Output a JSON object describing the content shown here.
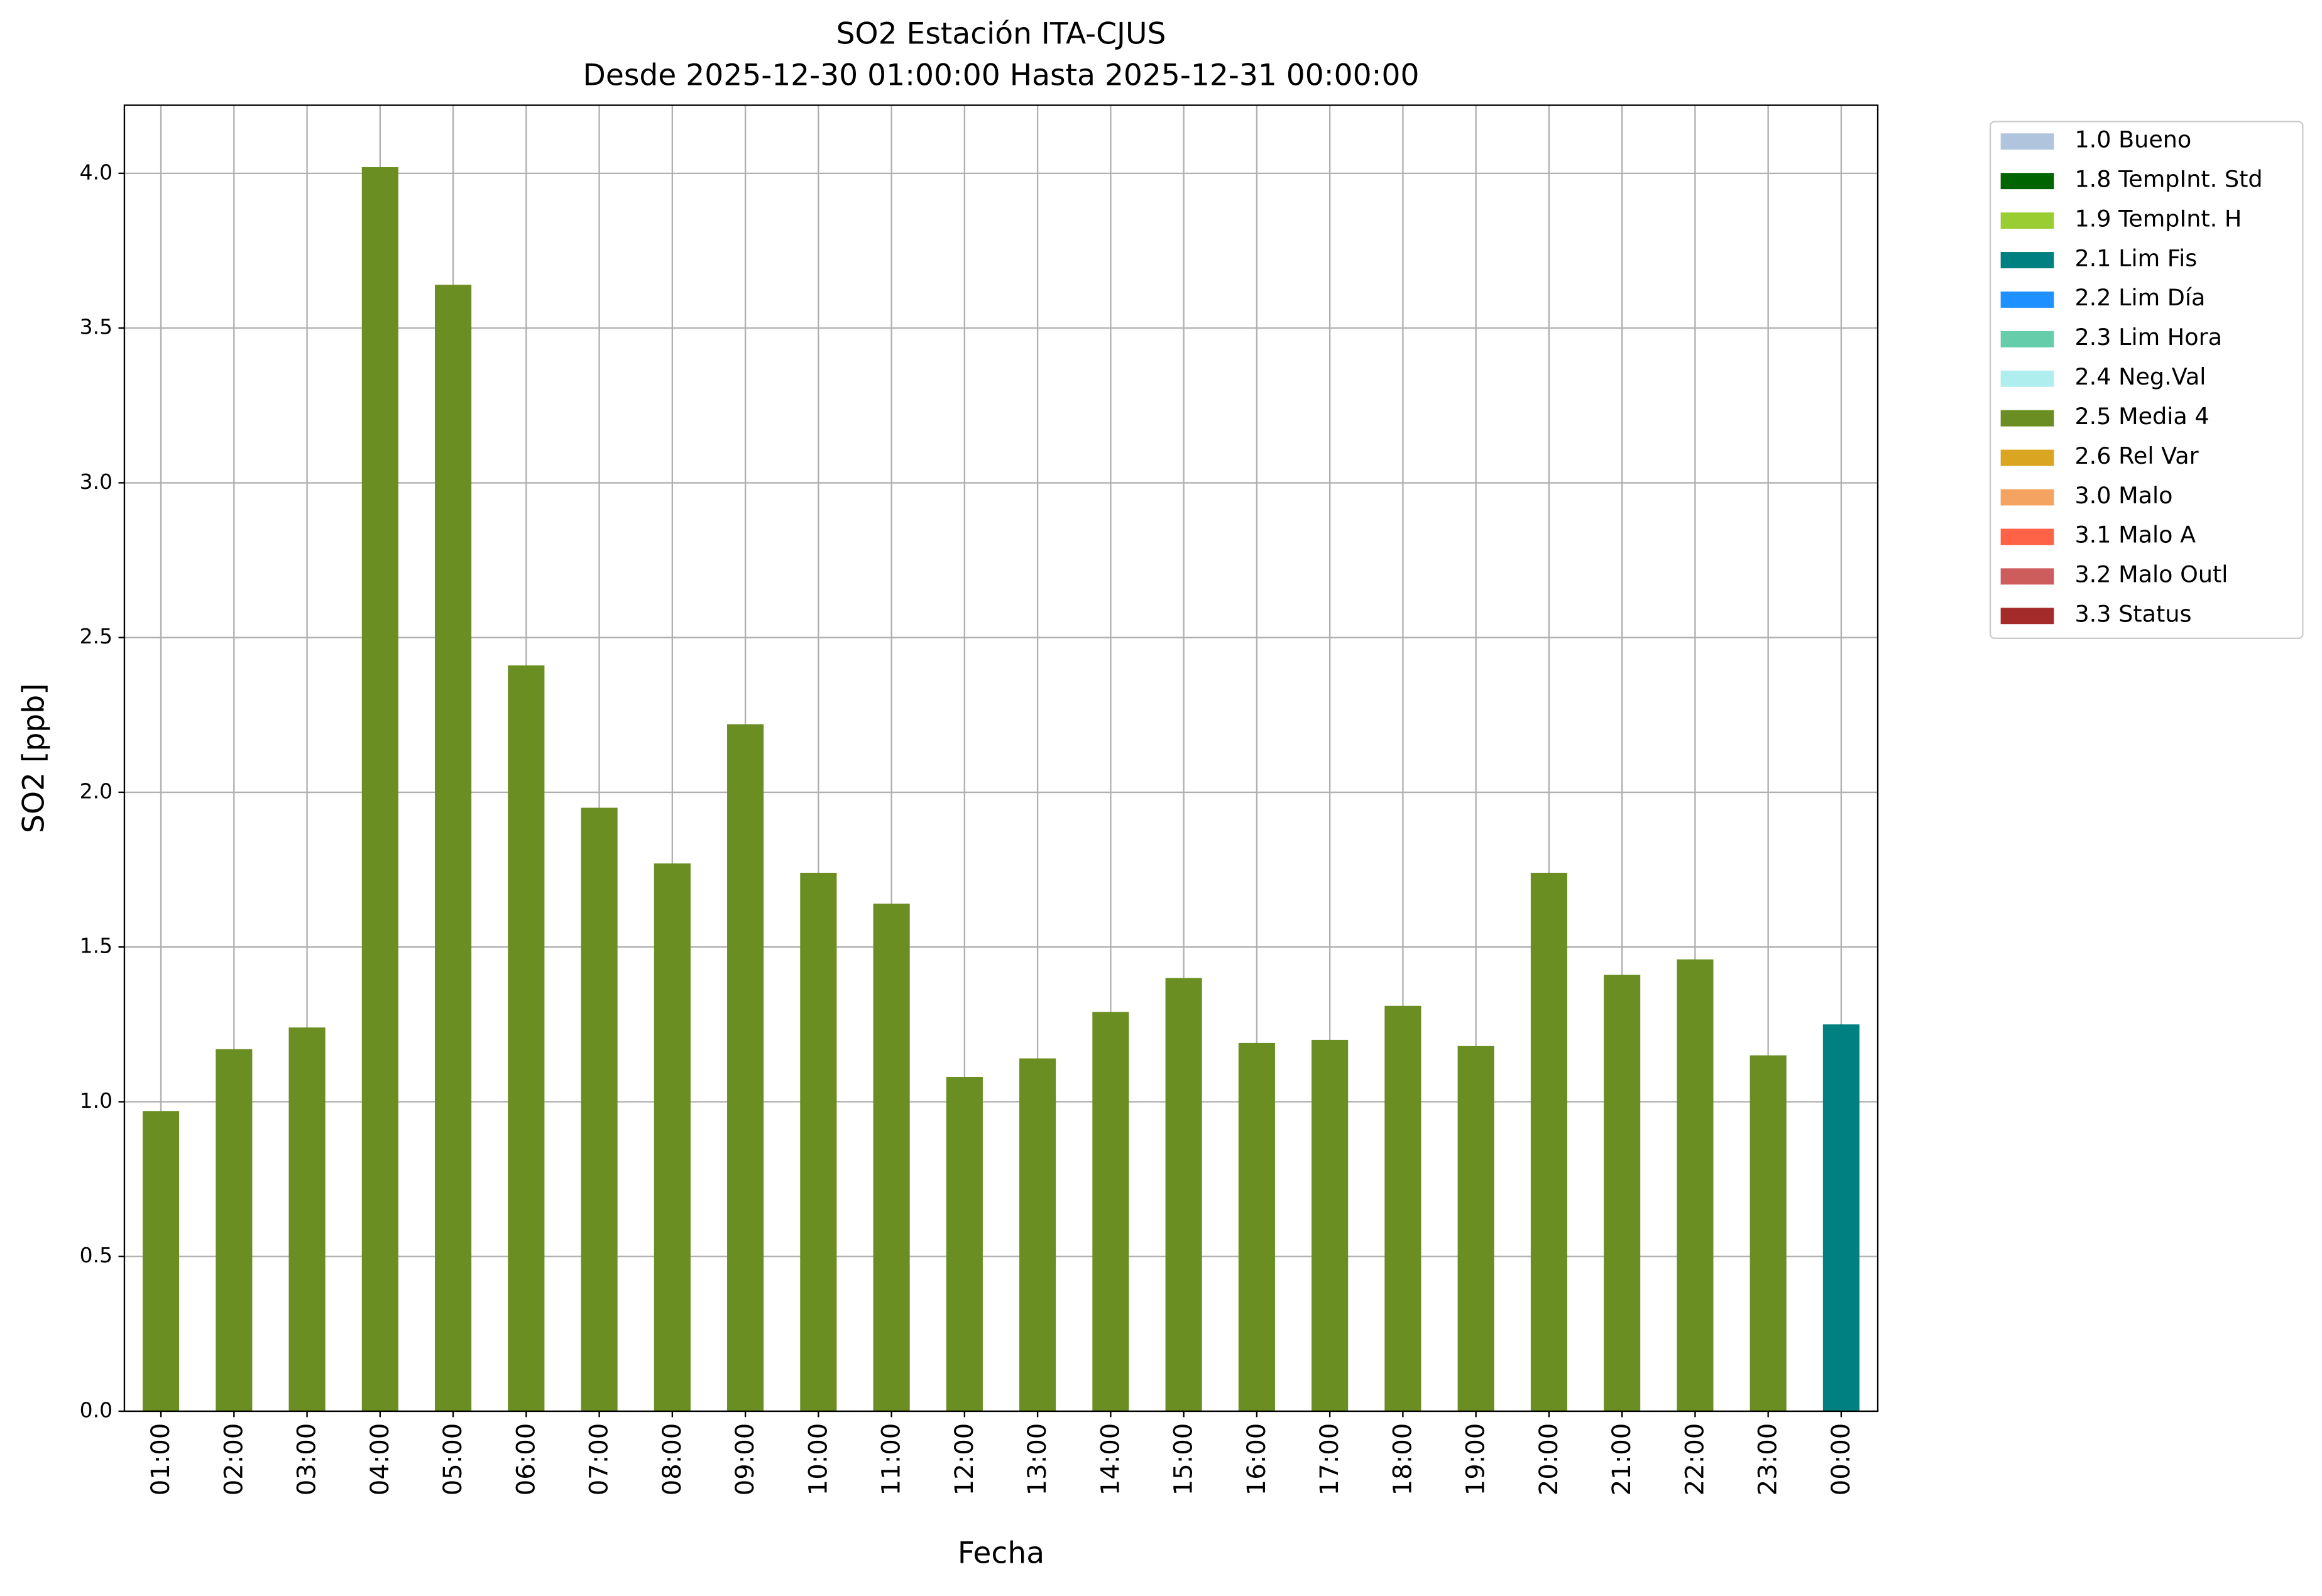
{
  "chart_data": {
    "type": "bar",
    "title": "SO2 Estación ITA-CJUS",
    "subtitle": "Desde 2025-12-30 01:00:00 Hasta 2025-12-31 00:00:00",
    "x_label": "Fecha",
    "y_label": "SO2 [ppb]",
    "categories": [
      "01:00",
      "02:00",
      "03:00",
      "04:00",
      "05:00",
      "06:00",
      "07:00",
      "08:00",
      "09:00",
      "10:00",
      "11:00",
      "12:00",
      "13:00",
      "14:00",
      "15:00",
      "16:00",
      "17:00",
      "18:00",
      "19:00",
      "20:00",
      "21:00",
      "22:00",
      "23:00",
      "00:00"
    ],
    "values": [
      0.97,
      1.17,
      1.24,
      4.02,
      3.64,
      2.41,
      1.95,
      1.77,
      2.22,
      1.74,
      1.64,
      1.08,
      1.14,
      1.29,
      1.4,
      1.19,
      1.2,
      1.31,
      1.18,
      1.74,
      1.41,
      1.46,
      1.15,
      1.25
    ],
    "colors": [
      "#6b8e23",
      "#6b8e23",
      "#6b8e23",
      "#6b8e23",
      "#6b8e23",
      "#6b8e23",
      "#6b8e23",
      "#6b8e23",
      "#6b8e23",
      "#6b8e23",
      "#6b8e23",
      "#6b8e23",
      "#6b8e23",
      "#6b8e23",
      "#6b8e23",
      "#6b8e23",
      "#6b8e23",
      "#6b8e23",
      "#6b8e23",
      "#6b8e23",
      "#6b8e23",
      "#6b8e23",
      "#6b8e23",
      "#008080"
    ],
    "ylim": [
      0,
      4.22
    ],
    "yticks": [
      {
        "value": 0,
        "label": "0.0"
      },
      {
        "value": 0.5,
        "label": "0.5"
      },
      {
        "value": 1,
        "label": "1.0"
      },
      {
        "value": 1.5,
        "label": "1.5"
      },
      {
        "value": 2,
        "label": "2.0"
      },
      {
        "value": 2.5,
        "label": "2.5"
      },
      {
        "value": 3,
        "label": "3.0"
      },
      {
        "value": 3.5,
        "label": "3.5"
      },
      {
        "value": 4,
        "label": "4.0"
      }
    ],
    "grid": true,
    "legend_position": "outside-upper-right",
    "legend": [
      {
        "name": "1.0 Bueno",
        "color": "#b0c4de"
      },
      {
        "name": "1.8 TempInt. Std",
        "color": "#006400"
      },
      {
        "name": "1.9 TempInt. H",
        "color": "#9acd32"
      },
      {
        "name": "2.1 Lim Fis",
        "color": "#008080"
      },
      {
        "name": "2.2 Lim Día",
        "color": "#1e90ff"
      },
      {
        "name": "2.3 Lim Hora",
        "color": "#66cdaa"
      },
      {
        "name": "2.4 Neg.Val",
        "color": "#afeeee"
      },
      {
        "name": "2.5 Media 4",
        "color": "#6b8e23"
      },
      {
        "name": "2.6 Rel Var",
        "color": "#daa520"
      },
      {
        "name": "3.0 Malo",
        "color": "#f4a460"
      },
      {
        "name": "3.1 Malo A",
        "color": "#ff6347"
      },
      {
        "name": "3.2 Malo Outl",
        "color": "#cd5c5c"
      },
      {
        "name": "3.3 Status",
        "color": "#a52a2a"
      }
    ]
  }
}
